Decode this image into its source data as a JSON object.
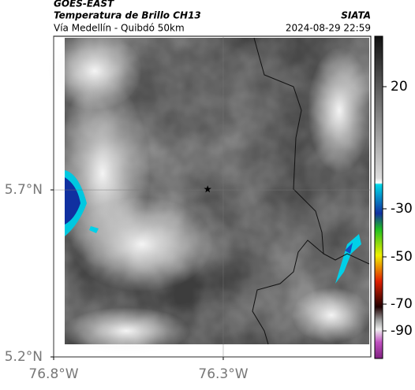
{
  "header": {
    "source": "GOES-EAST",
    "product": "Temperatura de Brillo CH13",
    "region": "Vía Medellín - Quibdó 50km",
    "agency": "SIATA",
    "timestamp": "2024-08-29 22:59"
  },
  "map": {
    "xlim": [
      -76.8,
      -75.865
    ],
    "ylim": [
      5.2,
      6.16
    ],
    "xticks": [
      {
        "value": -76.8,
        "label": "76.8°W"
      },
      {
        "value": -76.3,
        "label": "76.3°W"
      }
    ],
    "yticks": [
      {
        "value": 5.7,
        "label": "5.7°N"
      },
      {
        "value": 5.2,
        "label": "5.2°N"
      }
    ],
    "grid": true,
    "marker": {
      "lon": -76.346,
      "lat": 5.702
    }
  },
  "colorbar": {
    "ticks": [
      20,
      -30,
      -50,
      -70,
      -90
    ]
  }
}
